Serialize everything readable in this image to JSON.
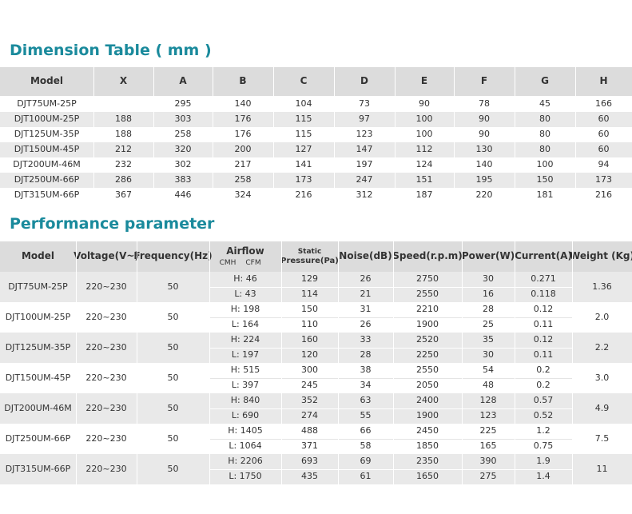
{
  "dimension_table": {
    "title": "Dimension Table ( mm )",
    "headers": [
      "Model",
      "X",
      "A",
      "B",
      "C",
      "D",
      "E",
      "F",
      "G",
      "H"
    ],
    "rows": [
      [
        "DJT75UM-25P",
        null,
        "295",
        "140",
        "104",
        "73",
        "90",
        "78",
        "45",
        "166"
      ],
      [
        "DJT100UM-25P",
        "188",
        "303",
        "176",
        "115",
        "97",
        "100",
        "90",
        "80",
        "60"
      ],
      [
        "DJT125UM-35P",
        "188",
        "258",
        "176",
        "115",
        "123",
        "100",
        "90",
        "80",
        "60"
      ],
      [
        "DJT150UM-45P",
        "212",
        "320",
        "200",
        "127",
        "147",
        "112",
        "130",
        "80",
        "60"
      ],
      [
        "DJT200UM-46M",
        "232",
        "302",
        "217",
        "141",
        "197",
        "124",
        "140",
        "100",
        "94"
      ],
      [
        "DJT250UM-66P",
        "286",
        "383",
        "258",
        "173",
        "247",
        "151",
        "195",
        "150",
        "173"
      ],
      [
        "DJT315UM-66P",
        "367",
        "446",
        "324",
        "216",
        "312",
        "187",
        "220",
        "181",
        "216"
      ]
    ]
  },
  "performance_table": {
    "title": "Performance parameter",
    "headers": [
      "Model",
      "Voltage(V~)",
      "Frequency(Hz)",
      "Airflow",
      [
        "Static",
        "Pressure(Pa)"
      ],
      "Noise(dB)",
      "Speed(r.p.m)",
      "Power(W)",
      "Current(A)",
      "Weight (Kg)"
    ],
    "airflow_units": [
      "CMH",
      "CFM"
    ],
    "rows": [
      {
        "model": "DJT75UM-25P",
        "voltage": "220~230",
        "frequency": "50",
        "airflow": [
          "H: 46",
          "L: 43"
        ],
        "static_pressure": [
          "129",
          "114"
        ],
        "noise": [
          "26",
          "21"
        ],
        "speed": [
          "2750",
          "2550"
        ],
        "power": [
          "30",
          "16"
        ],
        "current": [
          "0.271",
          "0.118"
        ],
        "weight": "1.36"
      },
      {
        "model": "DJT100UM-25P",
        "voltage": "220~230",
        "frequency": "50",
        "airflow": [
          "H: 198",
          "L: 164"
        ],
        "static_pressure": [
          "150",
          "110"
        ],
        "noise": [
          "31",
          "26"
        ],
        "speed": [
          "2210",
          "1900"
        ],
        "power": [
          "28",
          "25"
        ],
        "current": [
          "0.12",
          "0.11"
        ],
        "weight": "2.0"
      },
      {
        "model": "DJT125UM-35P",
        "voltage": "220~230",
        "frequency": "50",
        "airflow": [
          "H: 224",
          "L: 197"
        ],
        "static_pressure": [
          "160",
          "120"
        ],
        "noise": [
          "33",
          "28"
        ],
        "speed": [
          "2520",
          "2250"
        ],
        "power": [
          "35",
          "30"
        ],
        "current": [
          "0.12",
          "0.11"
        ],
        "weight": "2.2"
      },
      {
        "model": "DJT150UM-45P",
        "voltage": "220~230",
        "frequency": "50",
        "airflow": [
          "H: 515",
          "L: 397"
        ],
        "static_pressure": [
          "300",
          "245"
        ],
        "noise": [
          "38",
          "34"
        ],
        "speed": [
          "2550",
          "2050"
        ],
        "power": [
          "54",
          "48"
        ],
        "current": [
          "0.2",
          "0.2"
        ],
        "weight": "3.0"
      },
      {
        "model": "DJT200UM-46M",
        "voltage": "220~230",
        "frequency": "50",
        "airflow": [
          "H: 840",
          "L: 690"
        ],
        "static_pressure": [
          "352",
          "274"
        ],
        "noise": [
          "63",
          "55"
        ],
        "speed": [
          "2400",
          "1900"
        ],
        "power": [
          "128",
          "123"
        ],
        "current": [
          "0.57",
          "0.52"
        ],
        "weight": "4.9"
      },
      {
        "model": "DJT250UM-66P",
        "voltage": "220~230",
        "frequency": "50",
        "airflow": [
          "H: 1405",
          "L: 1064"
        ],
        "static_pressure": [
          "488",
          "371"
        ],
        "noise": [
          "66",
          "58"
        ],
        "speed": [
          "2450",
          "1850"
        ],
        "power": [
          "225",
          "165"
        ],
        "current": [
          "1.2",
          "0.75"
        ],
        "weight": "7.5"
      },
      {
        "model": "DJT315UM-66P",
        "voltage": "220~230",
        "frequency": "50",
        "airflow": [
          "H: 2206",
          "L: 1750"
        ],
        "static_pressure": [
          "693",
          "435"
        ],
        "noise": [
          "69",
          "61"
        ],
        "speed": [
          "2350",
          "1650"
        ],
        "power": [
          "390",
          "275"
        ],
        "current": [
          "1.9",
          "1.4"
        ],
        "weight": "11"
      }
    ]
  }
}
